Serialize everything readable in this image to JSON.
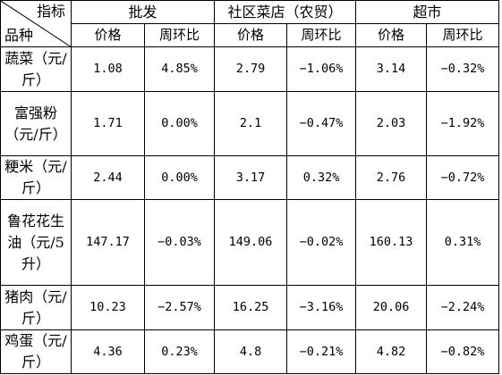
{
  "corner": {
    "col_label": "指标",
    "row_label": "品种"
  },
  "groups": [
    "批发",
    "社区菜店（农贸）",
    "超市"
  ],
  "sub_headers": [
    "价格",
    "周环比",
    "价格",
    "周环比",
    "价格",
    "周环比"
  ],
  "rows": [
    {
      "name": "蔬菜（元/斤）",
      "values": [
        "1.08",
        "4.85%",
        "2.79",
        "−1.06%",
        "3.14",
        "−0.32%"
      ]
    },
    {
      "name": "富强粉（元/斤）",
      "values": [
        "1.71",
        "0.00%",
        "2.1",
        "−0.47%",
        "2.03",
        "−1.92%"
      ]
    },
    {
      "name": "粳米（元/斤）",
      "values": [
        "2.44",
        "0.00%",
        "3.17",
        "0.32%",
        "2.76",
        "−0.72%"
      ]
    },
    {
      "name": "鲁花花生油（元/5升）",
      "values": [
        "147.17",
        "−0.03%",
        "149.06",
        "−0.02%",
        "160.13",
        "0.31%"
      ]
    },
    {
      "name": "猪肉（元/斤）",
      "values": [
        "10.23",
        "−2.57%",
        "16.25",
        "−3.16%",
        "20.06",
        "−2.24%"
      ]
    },
    {
      "name": "鸡蛋（元/斤）",
      "values": [
        "4.36",
        "0.23%",
        "4.8",
        "−0.21%",
        "4.82",
        "−0.82%"
      ]
    }
  ]
}
